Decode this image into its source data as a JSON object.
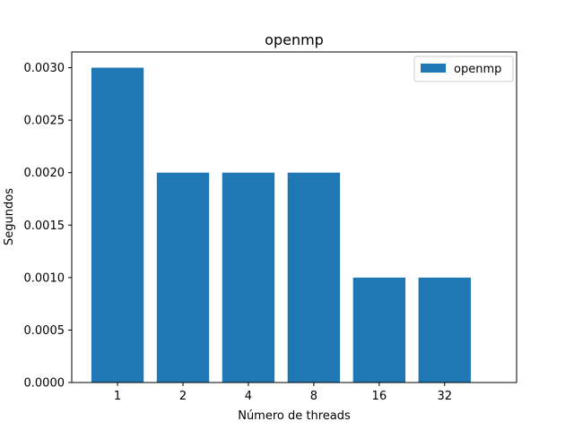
{
  "chart_data": {
    "type": "bar",
    "title": "openmp",
    "xlabel": "Número de threads",
    "ylabel": "Segundos",
    "categories": [
      "1",
      "2",
      "4",
      "8",
      "16",
      "32"
    ],
    "series": [
      {
        "name": "openmp",
        "values": [
          0.003,
          0.002,
          0.002,
          0.002,
          0.001,
          0.001
        ],
        "color": "#1f77b4"
      }
    ],
    "ylim": [
      0,
      0.00315
    ],
    "yticks": [
      0,
      0.0005,
      0.001,
      0.0015,
      0.002,
      0.0025,
      0.003
    ],
    "ytick_labels": [
      "0.0000",
      "0.0005",
      "0.0010",
      "0.0015",
      "0.0020",
      "0.0025",
      "0.0030"
    ],
    "grid": false,
    "legend_position": "top-right"
  }
}
